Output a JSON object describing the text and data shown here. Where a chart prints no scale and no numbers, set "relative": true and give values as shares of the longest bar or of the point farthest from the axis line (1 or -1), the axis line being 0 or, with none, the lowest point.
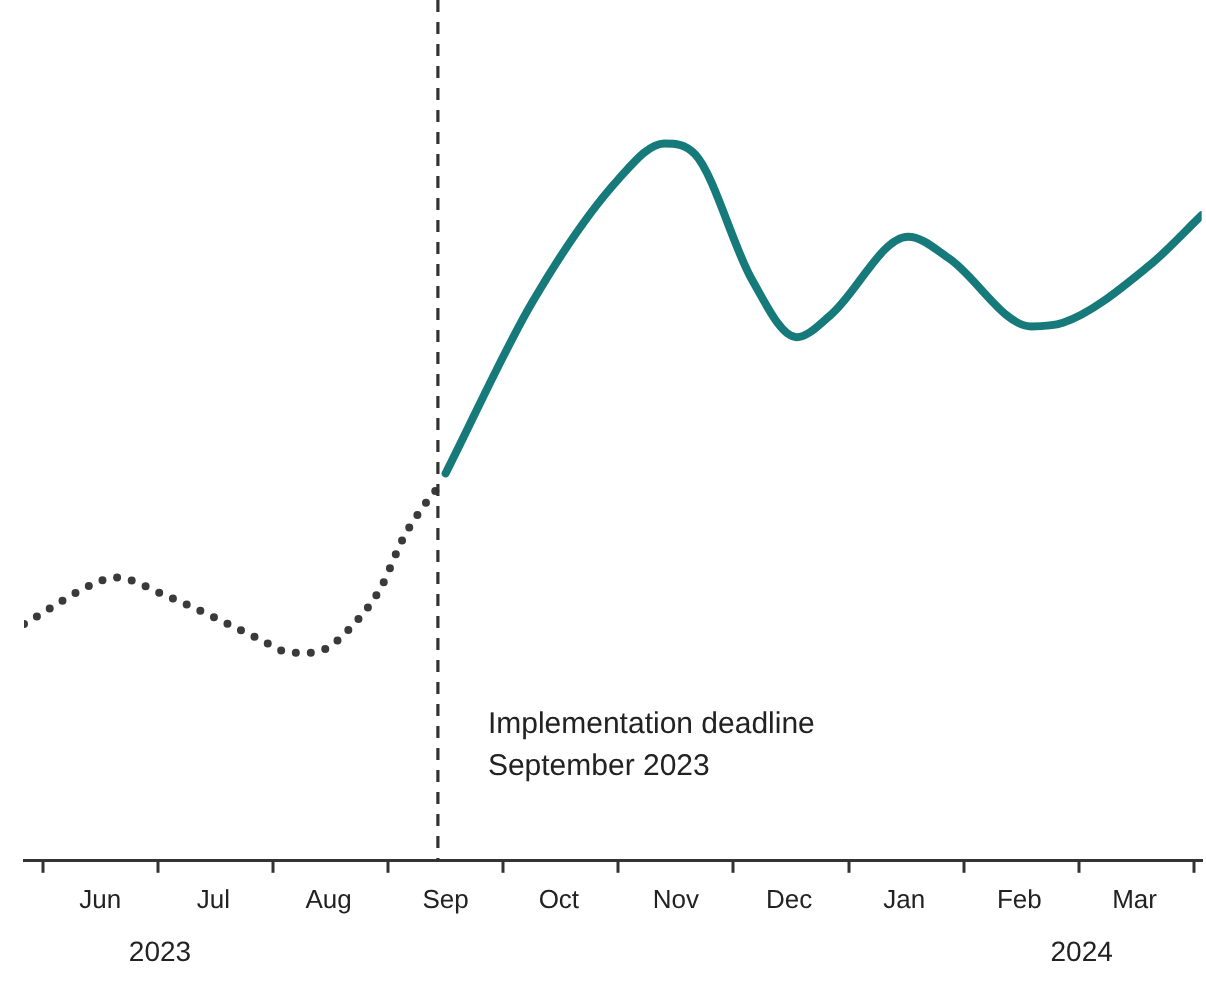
{
  "chart_data": {
    "type": "line",
    "relative": true,
    "marker": "none",
    "xlim": [
      "2023-05-27",
      "2024-04-03"
    ],
    "xticks": [
      {
        "value": "2023-06-01",
        "label": null
      },
      {
        "value": "2023-06-16",
        "label": "Jun"
      },
      {
        "value": "2023-07-01",
        "label": null
      },
      {
        "value": "2023-07-16",
        "label": "Jul"
      },
      {
        "value": "2023-08-01",
        "label": null
      },
      {
        "value": "2023-08-16",
        "label": "Aug"
      },
      {
        "value": "2023-09-01",
        "label": null
      },
      {
        "value": "2023-09-16",
        "label": "Sep"
      },
      {
        "value": "2023-10-01",
        "label": null
      },
      {
        "value": "2023-10-16",
        "label": "Oct"
      },
      {
        "value": "2023-11-01",
        "label": null
      },
      {
        "value": "2023-11-16",
        "label": "Nov"
      },
      {
        "value": "2023-12-01",
        "label": null
      },
      {
        "value": "2023-12-16",
        "label": "Dec"
      },
      {
        "value": "2024-01-01",
        "label": null
      },
      {
        "value": "2024-01-16",
        "label": "Jan"
      },
      {
        "value": "2024-02-01",
        "label": null
      },
      {
        "value": "2024-02-15",
        "label": "Feb"
      },
      {
        "value": "2024-03-01",
        "label": null
      },
      {
        "value": "2024-03-16",
        "label": "Mar"
      },
      {
        "value": "2024-04-01",
        "label": null
      }
    ],
    "series": [
      {
        "color": "#3a3a3a",
        "line_style": "dotted",
        "x": [
          "2023-05-27",
          "2023-06-16",
          "2023-06-20",
          "2023-07-03",
          "2023-07-16",
          "2023-07-28",
          "2023-08-06",
          "2023-08-10",
          "2023-08-15",
          "2023-08-21",
          "2023-08-30",
          "2023-09-05",
          "2023-09-11",
          "2023-09-14"
        ],
        "values": [
          0.33,
          0.39,
          0.395,
          0.37,
          0.34,
          0.31,
          0.29,
          0.29,
          0.295,
          0.32,
          0.38,
          0.45,
          0.5,
          0.52
        ]
      },
      {
        "color": "#177a7a",
        "line_style": "solid",
        "x": [
          "2023-09-16",
          "2023-10-09",
          "2023-11-01",
          "2023-11-13",
          "2023-11-21",
          "2023-12-06",
          "2023-12-18",
          "2023-12-27",
          "2024-01-17",
          "2024-01-28",
          "2024-02-18",
          "2024-02-26",
          "2024-03-20",
          "2024-04-03"
        ],
        "values": [
          0.54,
          0.78,
          0.95,
          1,
          0.985,
          0.81,
          0.73,
          0.76,
          0.87,
          0.84,
          0.745,
          0.75,
          0.83,
          0.9
        ]
      }
    ],
    "ref_lines": [
      {
        "axis": "x",
        "value": "2023-09-14",
        "label": "Implementation deadline\nSeptember 2023",
        "line_style": "dashed",
        "color": "#333333"
      }
    ],
    "annotations": [
      "2023",
      "2024"
    ]
  }
}
